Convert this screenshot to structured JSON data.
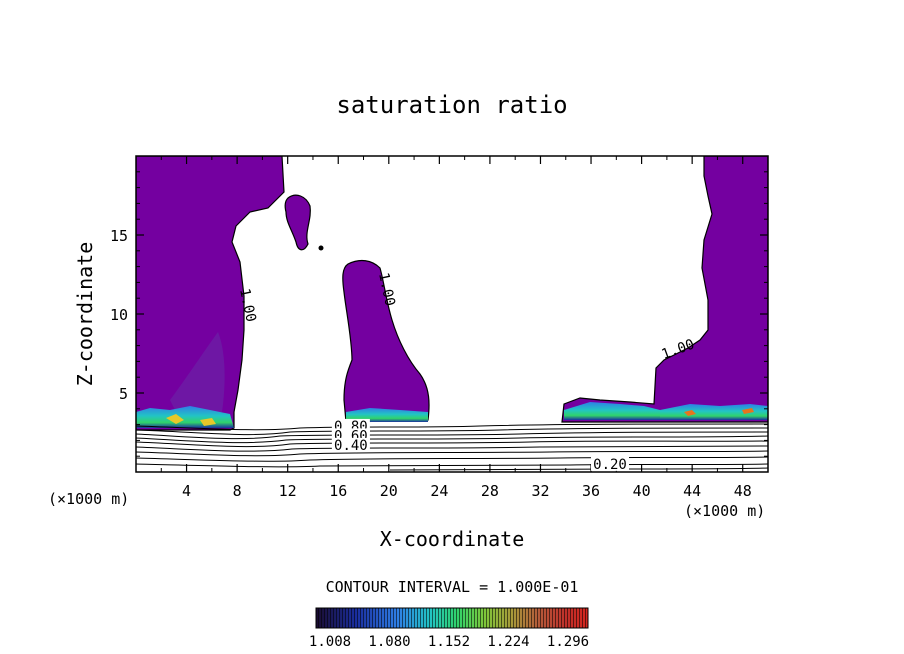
{
  "chart_data": {
    "type": "contour",
    "title": "saturation ratio",
    "xlabel": "X-coordinate",
    "ylabel": "Z-coordinate",
    "x_unit_left": "(×1000 m)",
    "x_unit_right": "(×1000 m)",
    "xlim": [
      0,
      50
    ],
    "ylim": [
      0,
      20
    ],
    "x_ticks": [
      4,
      8,
      12,
      16,
      20,
      24,
      28,
      32,
      36,
      40,
      44,
      48
    ],
    "y_ticks": [
      5,
      10,
      15
    ],
    "contour_interval_label": "CONTOUR INTERVAL = 1.000E-01",
    "colorbar": {
      "ticks": [
        "1.008",
        "1.080",
        "1.152",
        "1.224",
        "1.296"
      ],
      "colors": [
        "#20104a",
        "#1a2fa0",
        "#2f7fe6",
        "#22c4c4",
        "#31d36b",
        "#9ad23a",
        "#e6c82a",
        "#e8741c",
        "#d6261e",
        "#a8141a"
      ]
    },
    "contour_labels": [
      {
        "text": "1.00",
        "x": 8.5,
        "z": 10.5
      },
      {
        "text": "1.00",
        "x": 19.5,
        "z": 11.5
      },
      {
        "text": "1.00",
        "x": 43.0,
        "z": 7.5
      },
      {
        "text": "0.80",
        "x": 17.0,
        "z": 2.6
      },
      {
        "text": "0.60",
        "x": 17.0,
        "z": 2.0
      },
      {
        "text": "0.40",
        "x": 17.0,
        "z": 1.4
      },
      {
        "text": "0.20",
        "x": 37.5,
        "z": 0.2
      }
    ],
    "supersaturated_regions": [
      {
        "name": "left",
        "x_range": [
          0,
          11.8
        ],
        "z_range": [
          3.0,
          20
        ]
      },
      {
        "name": "left-center-fragment",
        "x_range": [
          11.8,
          14.8
        ],
        "z_range": [
          14.0,
          17.5
        ]
      },
      {
        "name": "center",
        "x_range": [
          16.5,
          23.2
        ],
        "z_range": [
          3.2,
          13.2
        ]
      },
      {
        "name": "right",
        "x_range": [
          33.8,
          50
        ],
        "z_range": [
          3.2,
          20
        ]
      }
    ]
  }
}
